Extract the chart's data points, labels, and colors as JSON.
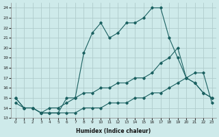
{
  "xlabel": "Humidex (Indice chaleur)",
  "xlim": [
    -0.5,
    23.5
  ],
  "ylim": [
    13,
    24.5
  ],
  "yticks": [
    13,
    14,
    15,
    16,
    17,
    18,
    19,
    20,
    21,
    22,
    23,
    24
  ],
  "xticks": [
    0,
    1,
    2,
    3,
    4,
    5,
    6,
    7,
    8,
    9,
    10,
    11,
    12,
    13,
    14,
    15,
    16,
    17,
    18,
    19,
    20,
    21,
    22,
    23
  ],
  "bg_color": "#ceeaea",
  "grid_color": "#b0cccc",
  "line_color": "#1a6060",
  "line1_x": [
    0,
    1,
    2,
    3,
    4,
    5,
    6,
    7,
    8,
    9,
    10,
    11,
    12,
    13,
    14,
    15,
    16,
    17,
    18,
    19,
    20,
    21,
    22,
    23
  ],
  "line1_y": [
    15,
    14,
    14,
    13.5,
    13.5,
    13.5,
    15,
    15,
    19.5,
    21.5,
    22.5,
    21,
    21.5,
    22.5,
    22.5,
    23,
    24,
    24,
    21,
    19,
    17,
    16.5,
    15.5,
    15
  ],
  "line2_x": [
    0,
    1,
    2,
    3,
    4,
    5,
    6,
    7,
    8,
    9,
    10,
    11,
    12,
    13,
    14,
    15,
    16,
    17,
    18,
    19,
    20,
    21,
    22,
    23
  ],
  "line2_y": [
    15,
    14,
    14,
    13.5,
    14,
    14,
    14.5,
    15,
    15.5,
    15.5,
    16,
    16,
    16.5,
    16.5,
    17,
    17,
    17.5,
    18.5,
    19,
    20,
    17,
    16.5,
    15.5,
    15
  ],
  "line3_x": [
    0,
    1,
    2,
    3,
    4,
    5,
    6,
    7,
    8,
    9,
    10,
    11,
    12,
    13,
    14,
    15,
    16,
    17,
    18,
    19,
    20,
    21,
    22,
    23
  ],
  "line3_y": [
    14.5,
    14,
    14,
    13.5,
    13.5,
    13.5,
    13.5,
    13.5,
    14,
    14,
    14,
    14.5,
    14.5,
    14.5,
    15,
    15,
    15.5,
    15.5,
    16,
    16.5,
    17,
    17.5,
    17.5,
    14.5
  ]
}
